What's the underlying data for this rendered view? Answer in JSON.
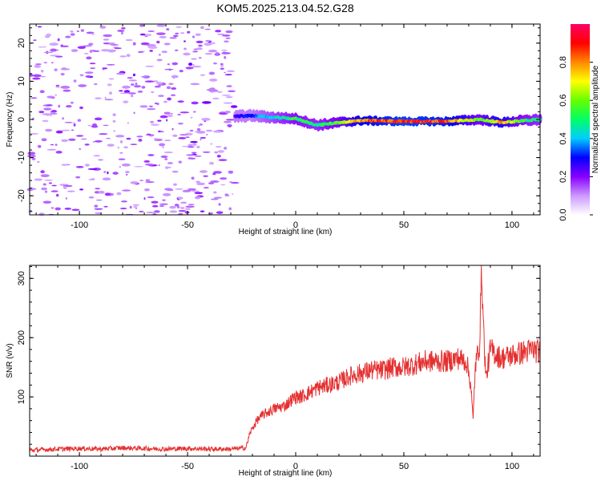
{
  "title": "KOM5.2025.213.04.52.G28",
  "chart_data": [
    {
      "id": "spectrogram",
      "type": "heatmap",
      "xlabel": "Height of straight line (km)",
      "ylabel": "Frequency (Hz)",
      "xlim": [
        -123,
        113
      ],
      "ylim": [
        -25,
        25
      ],
      "x_ticks": [
        -100,
        -50,
        0,
        50,
        100
      ],
      "y_ticks": [
        -20,
        -10,
        0,
        10,
        20
      ],
      "colorbar": {
        "label": "Normalized spectral amplitude",
        "range": [
          0,
          1
        ],
        "ticks": [
          0.0,
          0.2,
          0.4,
          0.6,
          0.8
        ],
        "tick_labels": [
          "0.0",
          "0.2",
          "0.4",
          "0.6",
          "0.8"
        ],
        "colors": [
          "#ffffff",
          "#cc99ff",
          "#8800ff",
          "#0000ff",
          "#00ccff",
          "#00ff66",
          "#66ff00",
          "#ffff00",
          "#ff8800",
          "#ff0000",
          "#ff0066"
        ]
      },
      "noise_region_x": [
        -123,
        -28
      ],
      "signal_track": [
        {
          "x": -28,
          "freq": 0.8,
          "amp": 0.25
        },
        {
          "x": -20,
          "freq": 1.0,
          "amp": 0.35
        },
        {
          "x": -10,
          "freq": 0.5,
          "amp": 0.45
        },
        {
          "x": 0,
          "freq": 0.2,
          "amp": 0.55
        },
        {
          "x": 10,
          "freq": -1.5,
          "amp": 0.5
        },
        {
          "x": 20,
          "freq": -0.8,
          "amp": 0.6
        },
        {
          "x": 30,
          "freq": -0.3,
          "amp": 0.85
        },
        {
          "x": 50,
          "freq": -0.5,
          "amp": 0.95
        },
        {
          "x": 70,
          "freq": -0.5,
          "amp": 0.9
        },
        {
          "x": 85,
          "freq": 0.0,
          "amp": 0.6
        },
        {
          "x": 95,
          "freq": -0.8,
          "amp": 0.8
        },
        {
          "x": 105,
          "freq": -0.3,
          "amp": 0.55
        },
        {
          "x": 113,
          "freq": 0.0,
          "amp": 0.5
        }
      ]
    },
    {
      "id": "snr",
      "type": "line",
      "xlabel": "Height of straight line (km)",
      "ylabel": "SNR (v/v)",
      "xlim": [
        -123,
        113
      ],
      "ylim": [
        0,
        322
      ],
      "x_ticks": [
        -100,
        -50,
        0,
        50,
        100
      ],
      "y_ticks": [
        100,
        200,
        300
      ],
      "color": "#e53030",
      "x": [
        -123,
        -110,
        -100,
        -90,
        -80,
        -70,
        -60,
        -50,
        -40,
        -30,
        -23,
        -21,
        -18,
        -15,
        -10,
        -5,
        -2,
        0,
        2,
        5,
        10,
        15,
        20,
        25,
        30,
        35,
        40,
        45,
        50,
        55,
        60,
        65,
        70,
        75,
        79,
        81,
        82,
        83,
        85,
        86,
        87,
        88,
        90,
        95,
        100,
        105,
        110,
        113
      ],
      "values": [
        10,
        12,
        13,
        12,
        14,
        13,
        12,
        13,
        12,
        12,
        14,
        40,
        60,
        70,
        80,
        85,
        95,
        100,
        100,
        105,
        115,
        120,
        125,
        135,
        140,
        145,
        145,
        150,
        150,
        155,
        160,
        160,
        160,
        165,
        160,
        120,
        60,
        150,
        190,
        320,
        200,
        130,
        180,
        165,
        170,
        175,
        180,
        175
      ]
    }
  ]
}
